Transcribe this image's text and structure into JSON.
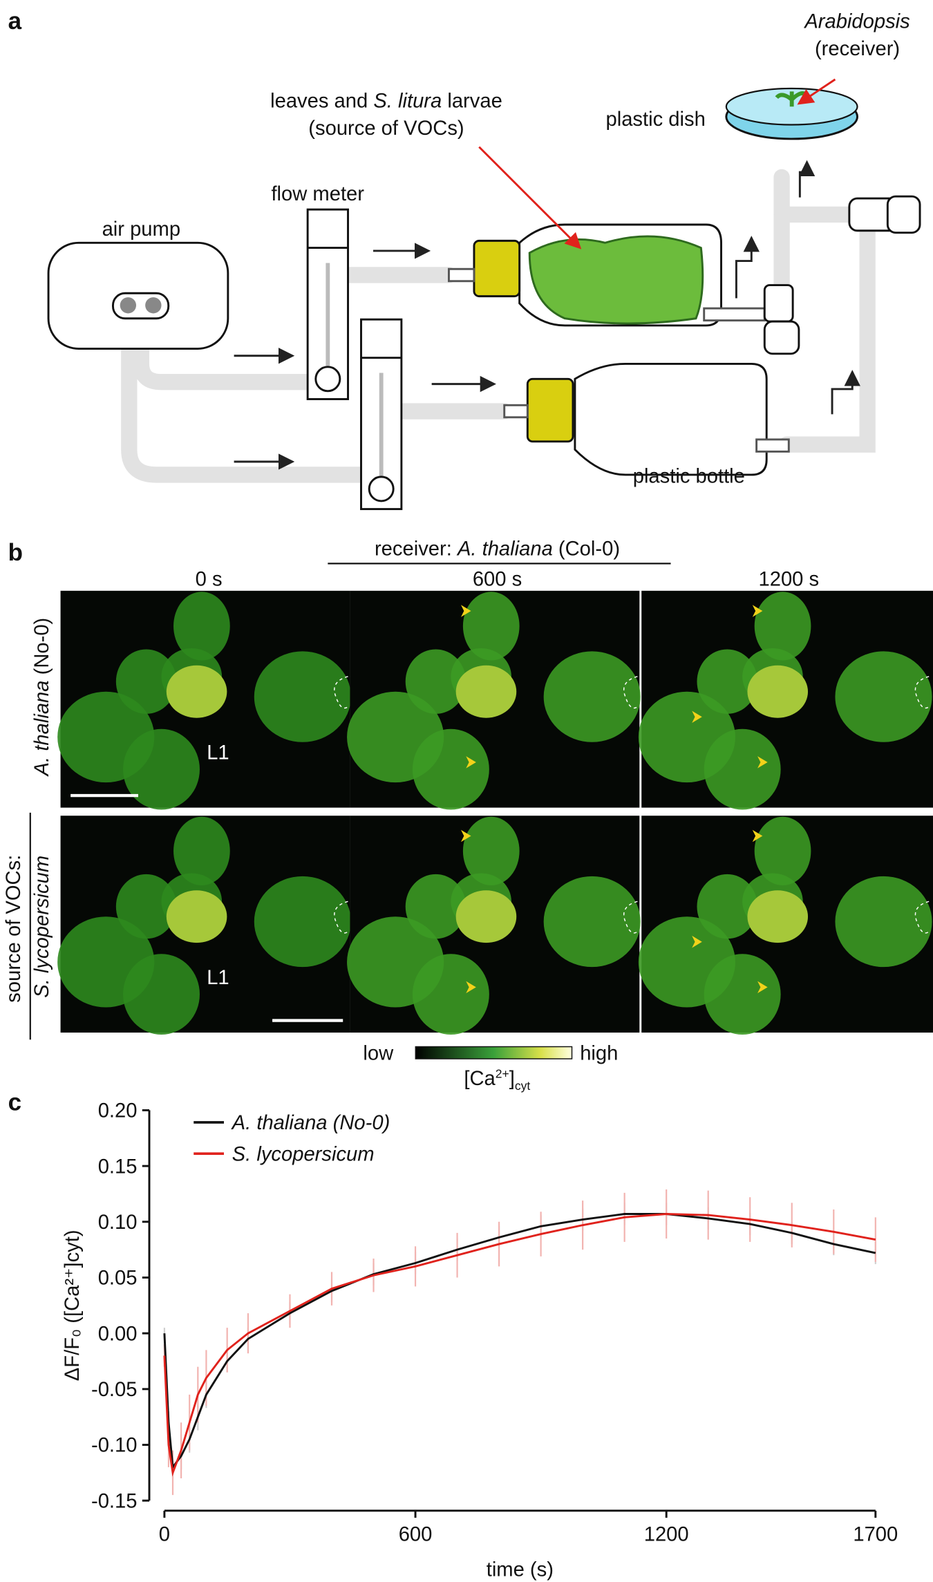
{
  "panel_a": {
    "label": "a",
    "air_pump": "air pump",
    "flow_meter": "flow meter",
    "source_line1": [
      "leaves and ",
      "S. litura",
      " larvae"
    ],
    "source_line2": "(source of VOCs)",
    "receiver_line1": "Arabidopsis",
    "receiver_line2": "(receiver)",
    "dish": "plastic dish",
    "bottle": "plastic bottle"
  },
  "panel_b": {
    "label": "b",
    "receiver": [
      "receiver: ",
      "A. thaliana",
      " (Col-0)"
    ],
    "times": [
      "0 s",
      "600 s",
      "1200 s"
    ],
    "leaf_label": "L1",
    "source": "source of VOCs:",
    "row1": [
      "A. thaliana",
      " (No-0)"
    ],
    "row2": "S. lycopersicum",
    "low": "low",
    "high": "high",
    "colorbar_label": [
      "[Ca",
      "2+",
      "]",
      "cyt"
    ]
  },
  "chart_data": {
    "type": "line",
    "panel_label": "c",
    "xlabel": "time (s)",
    "ylabel": "ΔF/F₀ ([Ca²⁺]cyt)",
    "x": [
      0,
      10,
      20,
      40,
      60,
      80,
      100,
      150,
      200,
      300,
      400,
      500,
      600,
      700,
      800,
      900,
      1000,
      1100,
      1200,
      1300,
      1400,
      1500,
      1600,
      1700
    ],
    "xlim": [
      0,
      1700
    ],
    "xticks": [
      0,
      600,
      1200,
      1700
    ],
    "ylim": [
      -0.15,
      0.2
    ],
    "yticks": [
      {
        "value": 0.2,
        "label": "0.20"
      },
      0.15,
      {
        "value": 0.1,
        "label": "0.10"
      },
      0.05,
      {
        "value": 0,
        "label": "0.00"
      },
      -0.05,
      {
        "value": -0.1,
        "label": "-0.10"
      },
      -0.15
    ],
    "series": [
      {
        "name": "A. thaliana (No-0)",
        "color": "#111111",
        "error_color": "#cfcfcf",
        "values": [
          0,
          -0.08,
          -0.12,
          -0.11,
          -0.095,
          -0.075,
          -0.055,
          -0.025,
          -0.005,
          0.018,
          0.038,
          0.053,
          0.063,
          0.075,
          0.086,
          0.096,
          0.102,
          0.107,
          0.107,
          0.103,
          0.098,
          0.09,
          0.08,
          0.072
        ],
        "errors": [
          0.005,
          0.01,
          0.01,
          0.012,
          0.012,
          0.012,
          0.012,
          0.01,
          0.01,
          0.01,
          0.01,
          0.01,
          0.01,
          0.01,
          0.01,
          0.01,
          0.01,
          0.01,
          0.01,
          0.01,
          0.01,
          0.01,
          0.01,
          0.01
        ]
      },
      {
        "name": "S. lycopersicum",
        "color": "#e0221c",
        "error_color": "#f2b3b0",
        "values": [
          -0.02,
          -0.1,
          -0.125,
          -0.105,
          -0.08,
          -0.055,
          -0.04,
          -0.015,
          0,
          0.02,
          0.04,
          0.052,
          0.06,
          0.07,
          0.08,
          0.089,
          0.097,
          0.104,
          0.107,
          0.106,
          0.102,
          0.097,
          0.091,
          0.084
        ],
        "errors": [
          0.01,
          0.02,
          0.02,
          0.025,
          0.025,
          0.025,
          0.025,
          0.02,
          0.018,
          0.015,
          0.015,
          0.015,
          0.018,
          0.02,
          0.02,
          0.02,
          0.022,
          0.022,
          0.022,
          0.022,
          0.02,
          0.02,
          0.02,
          0.02
        ]
      }
    ]
  }
}
